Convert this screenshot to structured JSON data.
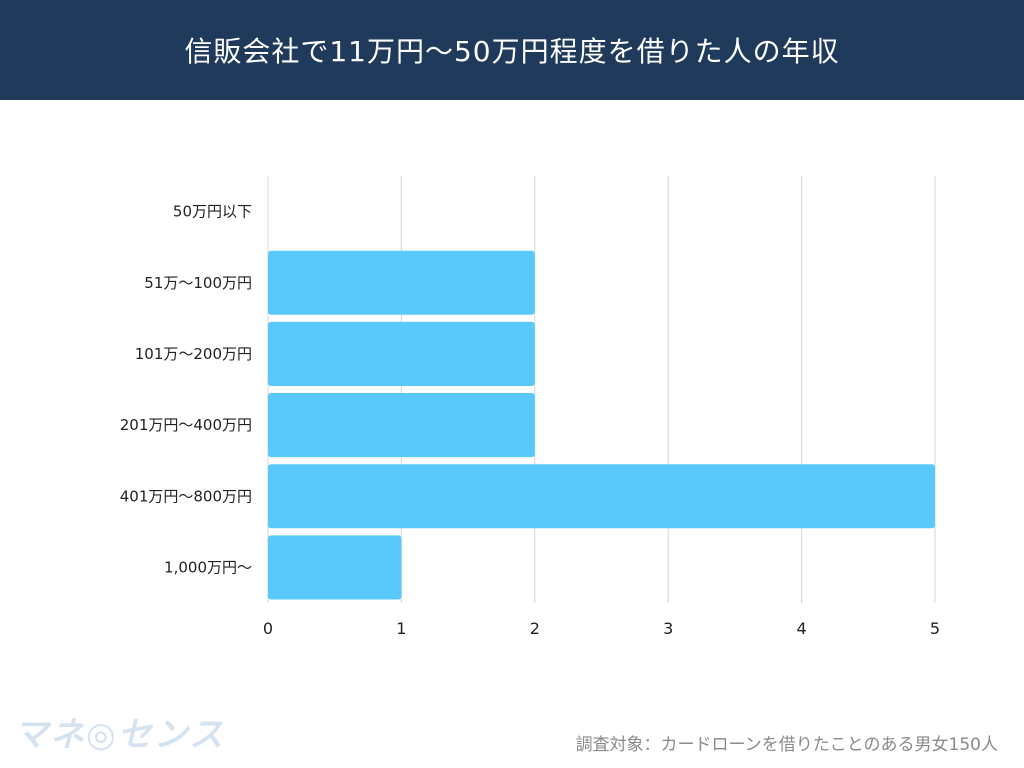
{
  "header": {
    "title": "信販会社で11万円〜50万円程度を借りた人の年収"
  },
  "chart_data": {
    "type": "bar",
    "orientation": "horizontal",
    "categories": [
      "50万円以下",
      "51万〜100万円",
      "101万〜200万円",
      "201万円〜400万円",
      "401万円〜800万円",
      "1,000万円〜"
    ],
    "values": [
      0,
      2,
      2,
      2,
      5,
      1
    ],
    "xlim": [
      0,
      5
    ],
    "xticks": [
      "0",
      "1",
      "2",
      "3",
      "4",
      "5"
    ],
    "grid": true,
    "bar_color": "#59c9fb",
    "title": "信販会社で11万円〜50万円程度を借りた人の年収",
    "xlabel": "",
    "ylabel": ""
  },
  "footer": {
    "logo_text": "マネ◎センス",
    "note": "調査対象：カードローンを借りたことのある男女150人"
  },
  "colors": {
    "header_bg": "#1f3a5a",
    "bar": "#59c9fb",
    "grid": "#d4d4d4"
  }
}
